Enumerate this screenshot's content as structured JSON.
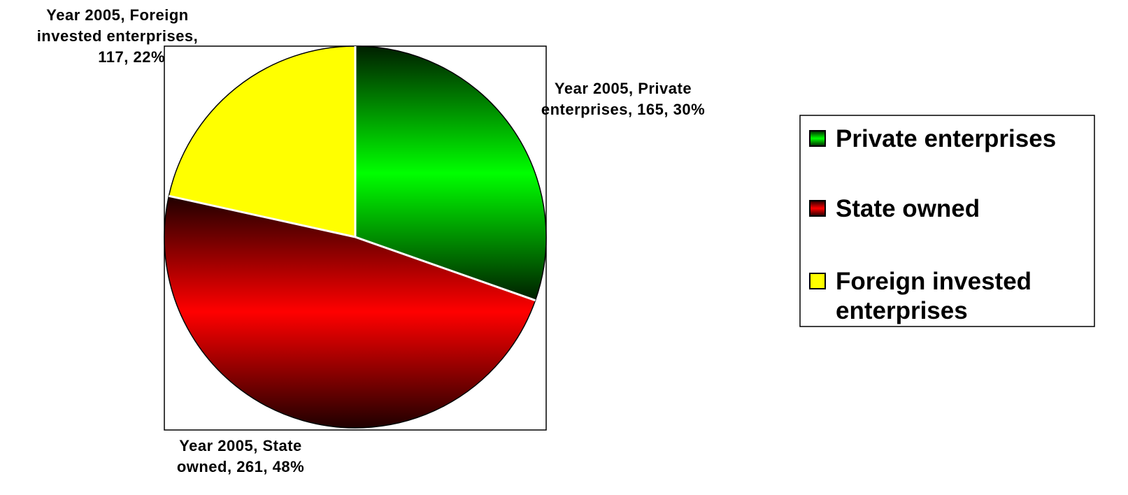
{
  "chart_data": {
    "type": "pie",
    "categories": [
      "Private enterprises",
      "State owned",
      "Foreign invested enterprises"
    ],
    "values": [
      165,
      261,
      117
    ],
    "percents": [
      30,
      48,
      22
    ],
    "series": [
      {
        "values": [
          165,
          261,
          117
        ]
      }
    ],
    "colors": [
      "#00ff00",
      "#ff0000",
      "#ffff00"
    ],
    "data_labels": [
      [
        "Year 2005, Private",
        "enterprises, 165, 30%"
      ],
      [
        "Year 2005, State",
        "owned, 261, 48%"
      ],
      [
        "Year 2005, Foreign",
        "invested enterprises,",
        "117, 22%"
      ]
    ],
    "legend": {
      "placement": "right",
      "entries": [
        [
          "Private enterprises"
        ],
        [
          "State owned"
        ],
        [
          "Foreign invested",
          "enterprises"
        ]
      ]
    }
  }
}
